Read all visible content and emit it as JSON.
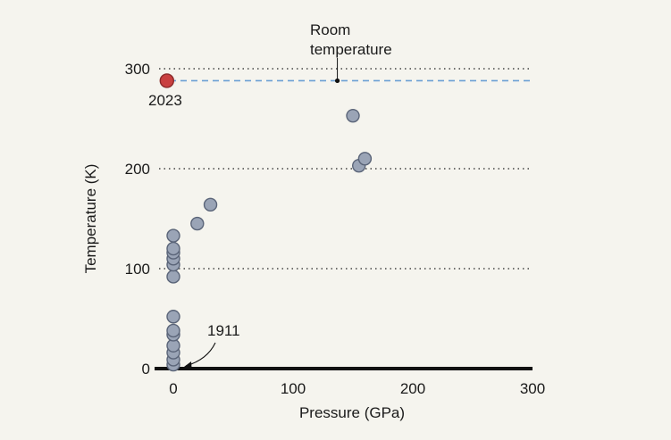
{
  "chart_data": {
    "type": "scatter",
    "xlabel": "Pressure (GPa)",
    "ylabel": "Temperature (K)",
    "xlim": [
      -10,
      300
    ],
    "ylim": [
      0,
      300
    ],
    "x_ticks": [
      0,
      100,
      200,
      300
    ],
    "y_ticks": [
      0,
      100,
      200,
      300
    ],
    "grid": "dotted horizontal lines at 100, 200, 300",
    "series": [
      {
        "color": "#9aa4b6",
        "points": [
          {
            "x": 0,
            "y": 4
          },
          {
            "x": 0,
            "y": 9
          },
          {
            "x": 0,
            "y": 16
          },
          {
            "x": 0,
            "y": 23
          },
          {
            "x": 0,
            "y": 34
          },
          {
            "x": 0,
            "y": 38
          },
          {
            "x": 0,
            "y": 52
          },
          {
            "x": 0,
            "y": 92
          },
          {
            "x": 0,
            "y": 104
          },
          {
            "x": 0,
            "y": 110
          },
          {
            "x": 0,
            "y": 116
          },
          {
            "x": 0,
            "y": 120
          },
          {
            "x": 0,
            "y": 133
          },
          {
            "x": 20,
            "y": 145
          },
          {
            "x": 31,
            "y": 164
          },
          {
            "x": 150,
            "y": 253
          },
          {
            "x": 155,
            "y": 203
          },
          {
            "x": 160,
            "y": 210
          }
        ]
      },
      {
        "color": "#c94040",
        "points": [
          {
            "x": -5,
            "y": 288
          }
        ]
      }
    ],
    "reference_line": {
      "y": 288,
      "color": "#6a9fd4",
      "style": "dashed"
    },
    "annotations": [
      {
        "text_lines": [
          "Room",
          "temperature"
        ],
        "x": 137,
        "y": 288
      },
      {
        "text": "2023",
        "x": -5,
        "y": 288
      },
      {
        "text": "1911",
        "x": 8,
        "y": 3
      }
    ]
  }
}
